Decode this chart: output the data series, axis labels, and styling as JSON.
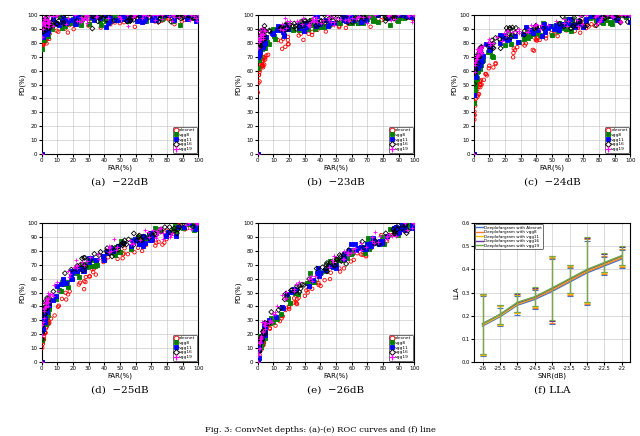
{
  "series_labels": [
    "alexnet",
    "vgg8",
    "vgg11",
    "vgg16",
    "vgg19"
  ],
  "series_colors": [
    "red",
    "green",
    "blue",
    "black",
    "magenta"
  ],
  "series_markers": [
    "o",
    "s",
    "s",
    "D",
    "+"
  ],
  "subplot_titles": [
    "(a)  −22dB",
    "(b)  −23dB",
    "(c)  −24dB",
    "(d)  −25dB",
    "(e)  −26dB",
    "(f) LLA"
  ],
  "roc_xlabel": "FAR(%)",
  "roc_ylabel": "PD(%)",
  "lla_xlabel": "SNR(dB)",
  "lla_ylabel": "LLA",
  "lla_labels": [
    "Deeplofargram with Alexnet",
    "Deeplofargram with vgg8",
    "Deeplofargram with vgg11",
    "Deeplofargram with vgg16",
    "Deeplofargram with vgg19"
  ],
  "lla_colors": [
    "#4472c4",
    "#ed7d31",
    "#ffc000",
    "#7030a0",
    "#70ad47"
  ],
  "snr_values": [
    -26,
    -25.5,
    -25,
    -24.5,
    -24,
    -23.5,
    -23,
    -22.5,
    -22
  ],
  "lla_means": {
    "alexnet": [
      0.155,
      0.195,
      0.245,
      0.27,
      0.305,
      0.345,
      0.385,
      0.415,
      0.445
    ],
    "vgg8": [
      0.16,
      0.2,
      0.25,
      0.275,
      0.31,
      0.35,
      0.39,
      0.42,
      0.45
    ],
    "vgg11": [
      0.16,
      0.2,
      0.25,
      0.278,
      0.315,
      0.355,
      0.395,
      0.425,
      0.455
    ],
    "vgg16": [
      0.165,
      0.205,
      0.255,
      0.28,
      0.318,
      0.358,
      0.398,
      0.428,
      0.458
    ],
    "vgg19": [
      0.165,
      0.205,
      0.258,
      0.282,
      0.32,
      0.36,
      0.4,
      0.43,
      0.46
    ]
  },
  "lla_errs": {
    "alexnet": [
      0.13,
      0.04,
      0.04,
      0.04,
      0.14,
      0.06,
      0.14,
      0.04,
      0.04
    ],
    "vgg8": [
      0.13,
      0.04,
      0.04,
      0.04,
      0.14,
      0.06,
      0.14,
      0.04,
      0.04
    ],
    "vgg11": [
      0.13,
      0.04,
      0.04,
      0.04,
      0.14,
      0.06,
      0.14,
      0.04,
      0.04
    ],
    "vgg16": [
      0.13,
      0.04,
      0.04,
      0.04,
      0.14,
      0.06,
      0.14,
      0.04,
      0.04
    ],
    "vgg19": [
      0.13,
      0.04,
      0.04,
      0.04,
      0.14,
      0.06,
      0.14,
      0.04,
      0.04
    ]
  },
  "roc_xlim": [
    0,
    100
  ],
  "roc_ylim": [
    0,
    100
  ],
  "lla_xlim": [
    -26.25,
    -21.75
  ],
  "lla_ylim": [
    0,
    0.6
  ],
  "snr_db_list": [
    -22,
    -23,
    -24,
    -25,
    -26
  ],
  "roc_curve_params": {
    "-22": {
      "alexnet": 0.05,
      "vgg8": 0.03,
      "vgg11": 0.025,
      "vgg16": 0.02,
      "vgg19": 0.015
    },
    "-23": {
      "alexnet": 0.12,
      "vgg8": 0.07,
      "vgg11": 0.06,
      "vgg16": 0.05,
      "vgg19": 0.04
    },
    "-24": {
      "alexnet": 0.22,
      "vgg8": 0.14,
      "vgg11": 0.12,
      "vgg16": 0.1,
      "vgg19": 0.09
    },
    "-25": {
      "alexnet": 0.4,
      "vgg8": 0.3,
      "vgg11": 0.28,
      "vgg16": 0.26,
      "vgg19": 0.25
    },
    "-26": {
      "alexnet": 0.6,
      "vgg8": 0.5,
      "vgg11": 0.48,
      "vgg16": 0.46,
      "vgg19": 0.45
    }
  }
}
